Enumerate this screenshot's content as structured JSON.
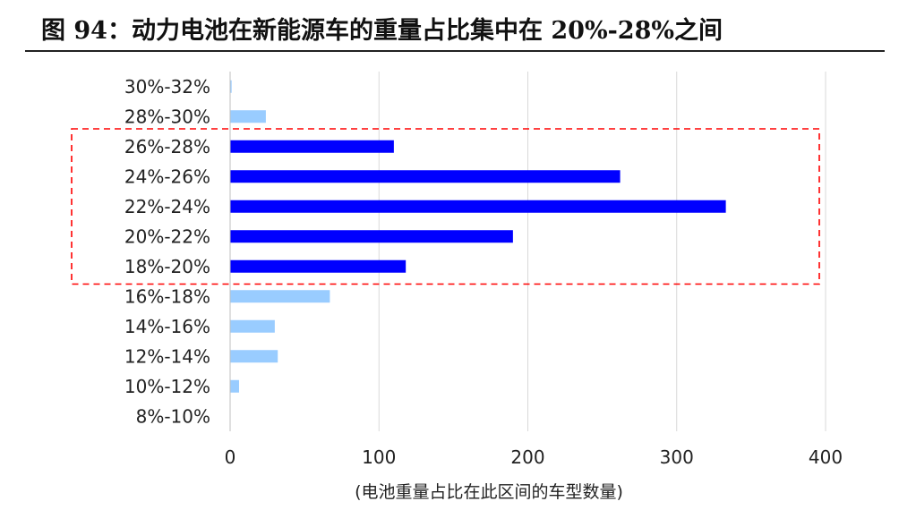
{
  "title": "图 94：动力电池在新能源车的重量占比集中在 20%-28%之间",
  "colors": {
    "highlight": "#0000ff",
    "normal": "#99ccff",
    "grid": "#d9d9d9",
    "box": "#ff0000",
    "text": "#222222"
  },
  "chart_data": {
    "type": "bar",
    "orientation": "horizontal",
    "title": "图 94：动力电池在新能源车的重量占比集中在 20%-28%之间",
    "xlabel": "(电池重量占比在此区间的车型数量)",
    "ylabel": "",
    "xlim": [
      0,
      400
    ],
    "xticks": [
      0,
      100,
      200,
      300,
      400
    ],
    "grid": true,
    "categories": [
      "30%-32%",
      "28%-30%",
      "26%-28%",
      "24%-26%",
      "22%-24%",
      "20%-22%",
      "18%-20%",
      "16%-18%",
      "14%-16%",
      "12%-14%",
      "10%-12%",
      "8%-10%"
    ],
    "values": [
      1,
      24,
      110,
      262,
      333,
      190,
      118,
      67,
      30,
      32,
      6,
      0
    ],
    "highlighted": [
      "26%-28%",
      "24%-26%",
      "22%-24%",
      "20%-22%",
      "18%-20%"
    ],
    "annotation": "red dashed box around 18%-28% bars"
  }
}
